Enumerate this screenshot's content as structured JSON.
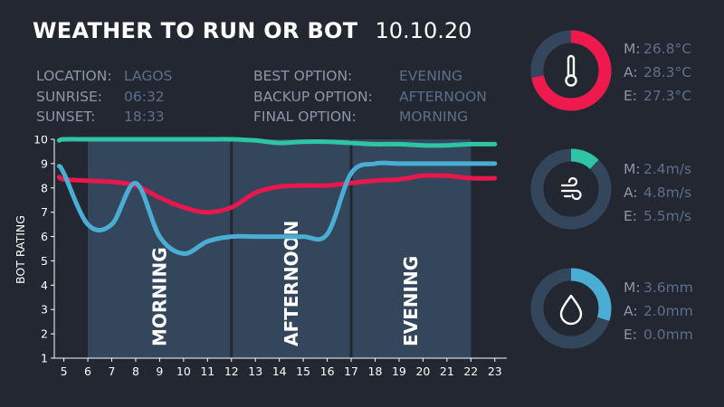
{
  "header": {
    "title": "WEATHER TO RUN OR BOT",
    "date": "10.10.20"
  },
  "info_left": [
    {
      "label": "LOCATION:",
      "value": "LAGOS"
    },
    {
      "label": "SUNRISE:",
      "value": "06:32"
    },
    {
      "label": "SUNSET:",
      "value": "18:33"
    }
  ],
  "info_right": [
    {
      "label": "BEST OPTION:",
      "value": "EVENING"
    },
    {
      "label": "BACKUP OPTION:",
      "value": "AFTERNOON"
    },
    {
      "label": "FINAL OPTION:",
      "value": "MORNING"
    }
  ],
  "colors": {
    "background": "#222731",
    "panel": "#34465c",
    "divider": "#222731",
    "green": "#2ec4a4",
    "red": "#e8174e",
    "blue": "#4aaed4",
    "ring_track": "#34465c",
    "text_label": "#8c97a8",
    "text_value": "#5d6f88"
  },
  "gauges": [
    {
      "icon": "thermometer-icon",
      "fraction": 0.72,
      "color": "#f0194e",
      "rows": [
        {
          "label": "M:",
          "value": "26.8°C"
        },
        {
          "label": "A:",
          "value": "28.3°C"
        },
        {
          "label": "E:",
          "value": "27.3°C"
        }
      ]
    },
    {
      "icon": "wind-icon",
      "fraction": 0.12,
      "color": "#2ec4a4",
      "rows": [
        {
          "label": "M:",
          "value": "2.4m/s"
        },
        {
          "label": "A:",
          "value": "4.8m/s"
        },
        {
          "label": "E:",
          "value": "5.5m/s"
        }
      ]
    },
    {
      "icon": "raindrop-icon",
      "fraction": 0.3,
      "color": "#4aaed4",
      "rows": [
        {
          "label": "M:",
          "value": "3.6mm"
        },
        {
          "label": "A:",
          "value": "2.0mm"
        },
        {
          "label": "E:",
          "value": "0.0mm"
        }
      ]
    }
  ],
  "chart_data": {
    "type": "line",
    "ylabel": "BOT RATING",
    "xlabel": "",
    "xlim": [
      4.6,
      23.5
    ],
    "ylim": [
      1,
      10
    ],
    "x_ticks": [
      5,
      6,
      7,
      8,
      9,
      10,
      11,
      12,
      13,
      14,
      15,
      16,
      17,
      18,
      19,
      20,
      21,
      22,
      23
    ],
    "y_ticks": [
      1,
      2,
      3,
      4,
      5,
      6,
      7,
      8,
      9,
      10
    ],
    "grid": false,
    "periods": [
      {
        "label": "MORNING",
        "start": 6,
        "end": 12
      },
      {
        "label": "AFTERNOON",
        "start": 12,
        "end": 17
      },
      {
        "label": "EVENING",
        "start": 17,
        "end": 22
      }
    ],
    "series": [
      {
        "color": "#2ec4a4",
        "x": [
          4.8,
          5,
          6,
          7,
          8,
          9,
          10,
          11,
          12,
          13,
          14,
          15,
          16,
          17,
          18,
          19,
          20,
          21,
          22,
          23
        ],
        "y": [
          9.95,
          10.0,
          10.0,
          10.0,
          10.0,
          10.0,
          10.0,
          10.0,
          10.0,
          9.95,
          9.85,
          9.9,
          9.9,
          9.85,
          9.8,
          9.8,
          9.75,
          9.75,
          9.8,
          9.8
        ]
      },
      {
        "color": "#e8174e",
        "x": [
          4.8,
          5,
          6,
          7,
          8,
          9,
          10,
          11,
          12,
          13,
          14,
          15,
          16,
          17,
          18,
          19,
          20,
          21,
          22,
          23
        ],
        "y": [
          8.45,
          8.35,
          8.3,
          8.25,
          8.1,
          7.6,
          7.2,
          7.0,
          7.2,
          7.8,
          8.05,
          8.1,
          8.1,
          8.2,
          8.3,
          8.35,
          8.5,
          8.5,
          8.4,
          8.4
        ]
      },
      {
        "color": "#4aaed4",
        "x": [
          4.8,
          5,
          6,
          7,
          8,
          9,
          10,
          11,
          12,
          13,
          14,
          15,
          16,
          17,
          18,
          19,
          20,
          21,
          22,
          23
        ],
        "y": [
          8.9,
          8.6,
          6.5,
          6.5,
          8.2,
          6.0,
          5.3,
          5.8,
          6.0,
          6.0,
          6.0,
          6.0,
          6.1,
          8.6,
          9.0,
          9.0,
          9.0,
          9.0,
          9.0,
          9.0
        ]
      }
    ]
  }
}
